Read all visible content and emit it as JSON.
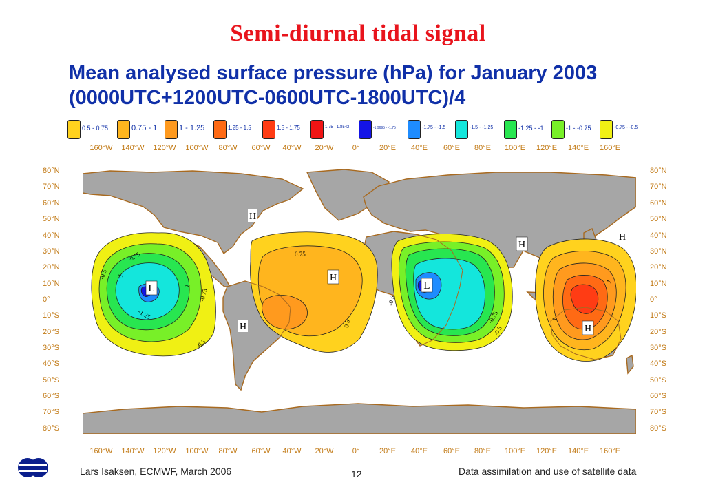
{
  "slide": {
    "title": "Semi-diurnal tidal signal",
    "map_title_line1": "Mean analysed surface pressure (hPa) for January 2003",
    "map_title_line2": "(0000UTC+1200UTC-0600UTC-1800UTC)/4"
  },
  "legend": {
    "items": [
      {
        "label": "0.5 - 0.75",
        "color": "#ffd21e"
      },
      {
        "label": "0.75 - 1",
        "color": "#ffb51e"
      },
      {
        "label": "1 - 1.25",
        "color": "#ff9a1e"
      },
      {
        "label": "1.25 - 1.5",
        "color": "#ff6a14"
      },
      {
        "label": "1.5 - 1.75",
        "color": "#ff3c14"
      },
      {
        "label": "1.75 - 1.8542",
        "color": "#f01414"
      },
      {
        "label": "-1.9695 - -1.75",
        "color": "#1414e6"
      },
      {
        "label": "-1.75 - -1.5",
        "color": "#1e8cff"
      },
      {
        "label": "-1.5 - -1.25",
        "color": "#14e6dc"
      },
      {
        "label": "-1.25 - -1",
        "color": "#28e650"
      },
      {
        "label": "-1 - -0.75",
        "color": "#78f028"
      },
      {
        "label": "-0.75 - -0.5",
        "color": "#f0f014"
      }
    ]
  },
  "axes": {
    "longitudes": [
      "160°W",
      "140°W",
      "120°W",
      "100°W",
      "80°W",
      "60°W",
      "40°W",
      "20°W",
      "0°",
      "20°E",
      "40°E",
      "60°E",
      "80°E",
      "100°E",
      "120°E",
      "140°E",
      "160°E"
    ],
    "latitudes": [
      "80°N",
      "70°N",
      "60°N",
      "50°N",
      "40°N",
      "30°N",
      "20°N",
      "10°N",
      "0°",
      "10°S",
      "20°S",
      "30°S",
      "40°S",
      "50°S",
      "60°S",
      "70°S",
      "80°S"
    ]
  },
  "map": {
    "ocean_color": "#ffffff",
    "land_color": "#a6a6a6",
    "coast_color": "#a86a20",
    "markers": [
      {
        "name": "low-marker-pacific",
        "text": "L"
      },
      {
        "name": "low-marker-indian",
        "text": "L"
      },
      {
        "name": "high-marker-n-atlantic",
        "text": "H"
      },
      {
        "name": "high-marker-atlantic",
        "text": "H"
      },
      {
        "name": "high-marker-andes",
        "text": "H"
      },
      {
        "name": "high-marker-tibet",
        "text": "H"
      },
      {
        "name": "high-marker-w-pacific",
        "text": "H"
      },
      {
        "name": "high-marker-s-pacific",
        "text": "H"
      }
    ],
    "contour_labels": {
      "p1": "-0.75",
      "p2": "-1",
      "p3": "-0.5",
      "p4": "-1.25",
      "p5": "1",
      "p6": "-0.75",
      "p7": "-0.5",
      "a1": "0.75",
      "a2": "0.5",
      "i1": "-0.5",
      "i2": "-0.75",
      "i3": "-0.5",
      "w1": "1",
      "w2": "1"
    }
  },
  "footer": {
    "author": "Lars Isaksen, ECMWF, March 2006",
    "page": "12",
    "course": "Data assimilation and use of satellite data"
  }
}
